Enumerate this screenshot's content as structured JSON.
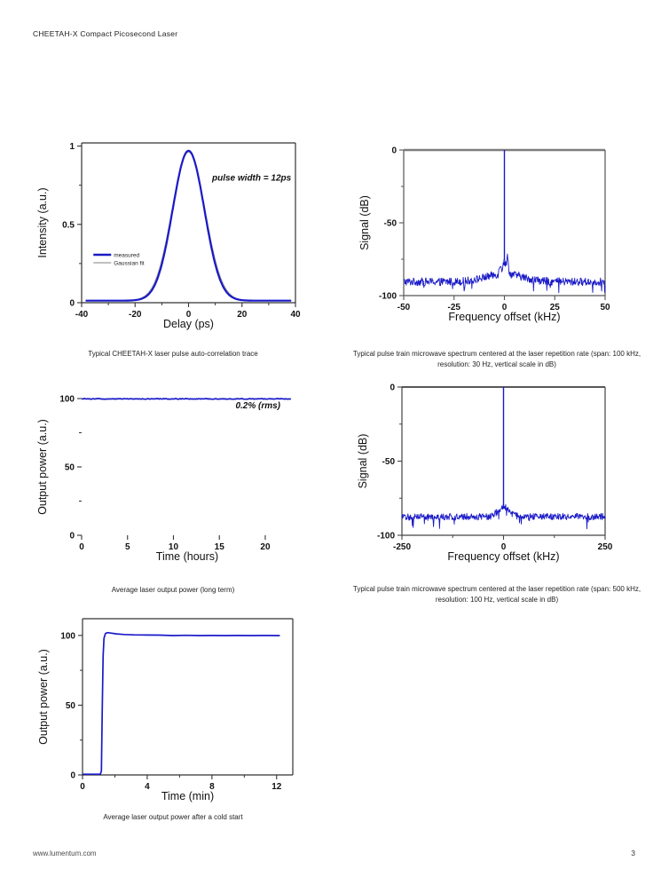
{
  "page": {
    "header_title": "CHEETAH-X Compact Picosecond Laser",
    "footer_url": "www.lumentum.com",
    "page_number": "3"
  },
  "colors": {
    "curve_blue": "#1a1ac8",
    "fit_gray": "#9a9a9a",
    "frame_dark": "#333333",
    "frame_gray": "#7d7d7d"
  },
  "chart_data": [
    {
      "id": "autocorrelation",
      "type": "line",
      "caption": "Typical CHEETAH-X laser pulse auto-correlation trace",
      "xlabel": "Delay (ps)",
      "ylabel": "Intensity (a.u.)",
      "xlim": [
        -40,
        40
      ],
      "ylim": [
        0,
        1.02
      ],
      "xticks": [
        -40,
        -20,
        0,
        20,
        40
      ],
      "xminorticks": [
        -30,
        -10,
        10,
        30
      ],
      "yticks": [
        0,
        0.5,
        1
      ],
      "yticklabels": [
        "0",
        "0.5",
        "1"
      ],
      "yminorticks": [
        0.25,
        0.75
      ],
      "frame": [
        "left",
        "top",
        "right",
        "bottom"
      ],
      "annotation": {
        "text": "pulse width = 12ps",
        "fx": 0.795,
        "fy": 0.235
      },
      "legend": {
        "fx": 0.055,
        "fy": 0.7,
        "entries": [
          {
            "label": "measured",
            "color": "#1a1ac8",
            "width": 2.6
          },
          {
            "label": "Gaussian fit",
            "color": "#9a9a9a",
            "width": 1.2
          }
        ]
      },
      "series": [
        {
          "name": "Gaussian fit",
          "shape": "gaussian",
          "center": 0,
          "fwhm": 14.6,
          "peak": 0.962,
          "baseline": 0.013,
          "color": "#9a9a9a",
          "width": 1.2
        },
        {
          "name": "measured",
          "shape": "gaussian",
          "center": 0,
          "fwhm": 14.0,
          "peak": 0.97,
          "baseline": 0.013,
          "color": "#1a1ac8",
          "width": 2.2
        }
      ],
      "pulse_width_ps": 12
    },
    {
      "id": "spectrum-100khz",
      "type": "line",
      "caption": "Typical pulse train microwave spectrum centered at the laser repetition rate (span: 100 kHz, resolution: 30 Hz,  vertical scale in dB)",
      "xlabel": "Frequency offset (kHz)",
      "ylabel": "Signal (dB)",
      "xlim": [
        -50,
        50
      ],
      "ylim": [
        -100,
        0
      ],
      "xticks": [
        -50,
        -25,
        0,
        25,
        50
      ],
      "yticks": [
        -100,
        -50,
        0
      ],
      "yminorticks": [
        -75,
        -25
      ],
      "frame": [
        "left",
        "top",
        "right",
        "bottom"
      ],
      "top_color": "#7d7d7d",
      "top_width": 2.4,
      "frame_color": "#555555",
      "span_khz": 100,
      "resolution_hz": 30,
      "series": [
        {
          "name": "spectrum",
          "shape": "spectrum",
          "seed": 1234,
          "samples": 470,
          "noise_floor": -90.5,
          "noise_amp": 2.7,
          "skirt": {
            "db": -85,
            "hw": 9
          },
          "pedestal": {
            "db": -77,
            "hw": 1.3
          },
          "bumps": [
            {
              "x": 1.6,
              "db": -72.5,
              "w": 0.55
            },
            {
              "x": -2.0,
              "db": -78,
              "w": 0.7
            }
          ],
          "spike": {
            "x": 0,
            "top": 0,
            "base": -76,
            "width": 1.4
          },
          "color": "#1a1ac8",
          "width": 0.9
        }
      ]
    },
    {
      "id": "long-term-power",
      "type": "line",
      "caption": "Average laser output power (long term)",
      "xlabel": "Time (hours)",
      "ylabel": "Output power (a.u.)",
      "xlim": [
        0,
        23
      ],
      "ylim": [
        0,
        100
      ],
      "xticks": [
        0,
        5,
        10,
        15,
        20
      ],
      "yticks": [
        0,
        50,
        100
      ],
      "yminorticks": [
        25,
        75
      ],
      "frame": [],
      "annotation": {
        "text": "0.2% (rms)",
        "fx": 0.835,
        "fy": 0.07
      },
      "stability_rms_percent": 0.2,
      "series": [
        {
          "name": "output power",
          "shape": "flat",
          "value": 100,
          "xstart": 0,
          "xend": 22.8,
          "noise": 0.5,
          "seed": 77,
          "color": "#1a1ac8",
          "width": 1.7
        }
      ]
    },
    {
      "id": "spectrum-500khz",
      "type": "line",
      "caption": "Typical pulse train microwave spectrum centered at the laser repetition rate (span: 500 kHz, resolution: 100 Hz, vertical scale in dB)",
      "xlabel": "Frequency offset (kHz)",
      "ylabel": "Signal (dB)",
      "xlim": [
        -250,
        250
      ],
      "ylim": [
        -100,
        0
      ],
      "xticks": [
        -250,
        0,
        250
      ],
      "xminorticks": [
        -125,
        125
      ],
      "yticks": [
        -100,
        -50,
        0
      ],
      "yminorticks": [
        -75,
        -25
      ],
      "frame": [
        "left",
        "top",
        "right",
        "bottom"
      ],
      "top_color": "#222222",
      "top_width": 1.4,
      "frame_color": "#444444",
      "span_khz": 500,
      "resolution_hz": 100,
      "series": [
        {
          "name": "spectrum",
          "shape": "spectrum",
          "seed": 555,
          "samples": 470,
          "noise_floor": -87.5,
          "noise_amp": 2.3,
          "pedestal": {
            "db": -81,
            "hw": 14
          },
          "bumps": [],
          "spike": {
            "x": 0,
            "top": 0,
            "base": -80,
            "width": 1.4
          },
          "color": "#1a1ac8",
          "width": 0.9
        }
      ]
    },
    {
      "id": "cold-start-power",
      "type": "line",
      "caption": "Average laser output power after a cold start",
      "xlabel": "Time (min)",
      "ylabel": "Output power (a.u.)",
      "xlim": [
        0,
        13
      ],
      "ylim": [
        0,
        112
      ],
      "xticks": [
        0,
        4,
        8,
        12
      ],
      "xminorticks": [
        2,
        6,
        10
      ],
      "yticks": [
        0,
        50,
        100
      ],
      "yminorticks": [
        25,
        75
      ],
      "frame": [
        "left",
        "top",
        "right",
        "bottom"
      ],
      "series": [
        {
          "name": "output power",
          "shape": "points",
          "color": "#1a1ac8",
          "width": 1.7,
          "points": [
            [
              0,
              0.5
            ],
            [
              1.1,
              0.5
            ],
            [
              1.17,
              3
            ],
            [
              1.22,
              45
            ],
            [
              1.27,
              85
            ],
            [
              1.33,
              98
            ],
            [
              1.42,
              101.5
            ],
            [
              1.55,
              102
            ],
            [
              1.8,
              101.6
            ],
            [
              2.1,
              101.1
            ],
            [
              2.6,
              100.7
            ],
            [
              3.2,
              100.4
            ],
            [
              4.0,
              100.3
            ],
            [
              4.8,
              100.2
            ],
            [
              5.6,
              99.9
            ],
            [
              6.4,
              100.1
            ],
            [
              7.2,
              99.9
            ],
            [
              8.0,
              100.0
            ],
            [
              8.8,
              99.9
            ],
            [
              9.6,
              100.0
            ],
            [
              10.4,
              99.9
            ],
            [
              11.2,
              100.0
            ],
            [
              12.2,
              99.9
            ]
          ]
        }
      ]
    }
  ]
}
